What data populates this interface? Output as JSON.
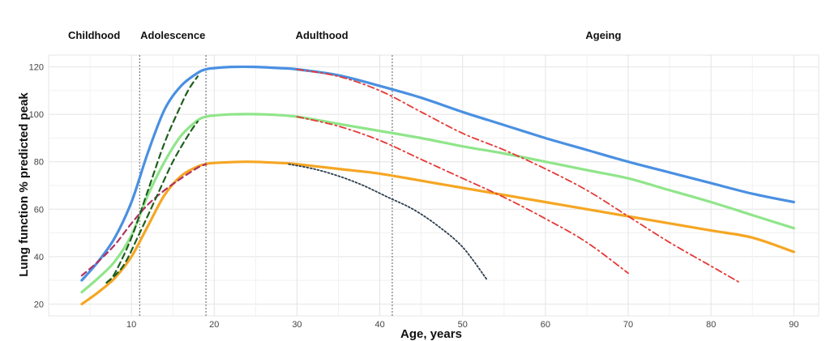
{
  "chart_data": {
    "type": "line",
    "title": "",
    "xlabel": "Age, years",
    "ylabel": "Lung function % predicted peak",
    "xlim": [
      0,
      93
    ],
    "ylim": [
      15,
      125
    ],
    "x_ticks": [
      10,
      20,
      30,
      40,
      50,
      60,
      70,
      80,
      90
    ],
    "y_ticks": [
      20,
      40,
      60,
      80,
      100,
      120
    ],
    "grid": true,
    "legend": "none",
    "stages": [
      {
        "label": "Childhood",
        "x": 5.5
      },
      {
        "label": "Adolescence",
        "x": 15
      },
      {
        "label": "Adulthood",
        "x": 33
      },
      {
        "label": "Ageing",
        "x": 67
      }
    ],
    "stage_boundaries": [
      11,
      19,
      41.5
    ],
    "series": [
      {
        "color": "#4a90e2",
        "style": "solid",
        "points": [
          [
            4,
            30
          ],
          [
            6,
            38
          ],
          [
            8,
            48
          ],
          [
            10,
            63
          ],
          [
            12,
            84
          ],
          [
            14,
            102
          ],
          [
            16,
            112
          ],
          [
            18,
            117.5
          ],
          [
            19,
            119
          ],
          [
            20,
            119.5
          ],
          [
            22,
            120
          ],
          [
            25,
            120
          ],
          [
            28,
            119.5
          ],
          [
            30,
            119
          ],
          [
            35,
            116.5
          ],
          [
            40,
            112
          ],
          [
            45,
            107
          ],
          [
            50,
            101
          ],
          [
            55,
            95.5
          ],
          [
            60,
            90
          ],
          [
            65,
            85
          ],
          [
            70,
            80
          ],
          [
            75,
            75.5
          ],
          [
            80,
            71
          ],
          [
            85,
            66.5
          ],
          [
            90,
            63
          ]
        ]
      },
      {
        "color": "#90e58a",
        "style": "solid",
        "points": [
          [
            4,
            25
          ],
          [
            6,
            31
          ],
          [
            8,
            38
          ],
          [
            10,
            49
          ],
          [
            12,
            66
          ],
          [
            14,
            80
          ],
          [
            16,
            91
          ],
          [
            18,
            97.5
          ],
          [
            19,
            99
          ],
          [
            20,
            99.5
          ],
          [
            22,
            100
          ],
          [
            26,
            100
          ],
          [
            30,
            99
          ],
          [
            35,
            96
          ],
          [
            40,
            93
          ],
          [
            45,
            90
          ],
          [
            50,
            86.5
          ],
          [
            55,
            83.5
          ],
          [
            60,
            80
          ],
          [
            65,
            76.5
          ],
          [
            70,
            73
          ],
          [
            75,
            68
          ],
          [
            80,
            63
          ],
          [
            85,
            57.5
          ],
          [
            90,
            52
          ]
        ]
      },
      {
        "color": "#f5a623",
        "style": "solid",
        "points": [
          [
            4,
            20
          ],
          [
            6,
            25
          ],
          [
            8,
            31
          ],
          [
            10,
            40
          ],
          [
            12,
            53
          ],
          [
            14,
            66
          ],
          [
            16,
            74
          ],
          [
            18,
            78
          ],
          [
            19,
            79
          ],
          [
            20,
            79.5
          ],
          [
            24,
            80
          ],
          [
            28,
            79.5
          ],
          [
            30,
            79
          ],
          [
            35,
            77
          ],
          [
            40,
            75
          ],
          [
            45,
            72
          ],
          [
            50,
            69
          ],
          [
            55,
            66
          ],
          [
            60,
            63
          ],
          [
            65,
            60
          ],
          [
            70,
            57
          ],
          [
            75,
            54
          ],
          [
            80,
            51
          ],
          [
            85,
            48
          ],
          [
            90,
            42
          ]
        ]
      },
      {
        "color": "#b03060",
        "style": "dashed",
        "points": [
          [
            4,
            32
          ],
          [
            6,
            38
          ],
          [
            8,
            45
          ],
          [
            10,
            54
          ],
          [
            12,
            62
          ],
          [
            14,
            68
          ],
          [
            16,
            73
          ],
          [
            18,
            77.5
          ],
          [
            19,
            79
          ]
        ]
      },
      {
        "color": "#1f5f1f",
        "style": "dashed",
        "points": [
          [
            7,
            29
          ],
          [
            8,
            33
          ],
          [
            10,
            48
          ],
          [
            12,
            68
          ],
          [
            14,
            88
          ],
          [
            16,
            104
          ],
          [
            17,
            111
          ],
          [
            18,
            116
          ]
        ]
      },
      {
        "color": "#1f5f1f",
        "style": "dashed",
        "points": [
          [
            7,
            29
          ],
          [
            9,
            36
          ],
          [
            11,
            50
          ],
          [
            13,
            65
          ],
          [
            15,
            80
          ],
          [
            17,
            92
          ],
          [
            18,
            97
          ]
        ]
      },
      {
        "color": "#e53935",
        "style": "dashdot",
        "points": [
          [
            30,
            119
          ],
          [
            35,
            116
          ],
          [
            40,
            110
          ],
          [
            45,
            101
          ],
          [
            50,
            92
          ],
          [
            55,
            85
          ],
          [
            60,
            77
          ],
          [
            65,
            68
          ],
          [
            70,
            57
          ],
          [
            75,
            46
          ],
          [
            80,
            36
          ],
          [
            83.5,
            29
          ]
        ]
      },
      {
        "color": "#e53935",
        "style": "dashdot",
        "points": [
          [
            30,
            99
          ],
          [
            35,
            95
          ],
          [
            40,
            89
          ],
          [
            45,
            81
          ],
          [
            50,
            73
          ],
          [
            55,
            65
          ],
          [
            60,
            56
          ],
          [
            65,
            46
          ],
          [
            70,
            33
          ]
        ]
      },
      {
        "color": "#2c3e50",
        "style": "dotted",
        "points": [
          [
            29,
            79
          ],
          [
            32,
            77
          ],
          [
            35,
            74
          ],
          [
            38,
            70
          ],
          [
            41,
            65
          ],
          [
            44,
            60
          ],
          [
            47,
            53
          ],
          [
            50,
            44
          ],
          [
            53,
            30
          ]
        ]
      }
    ]
  }
}
